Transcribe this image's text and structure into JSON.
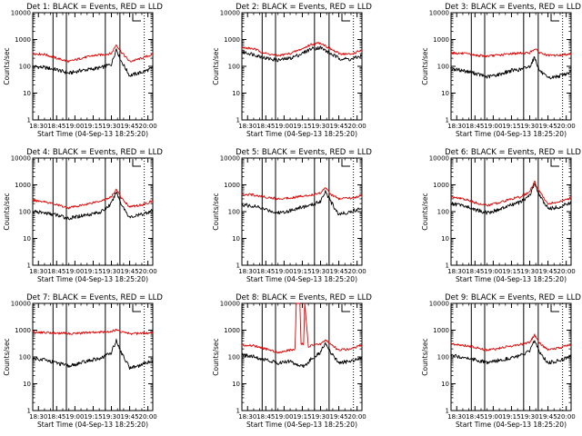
{
  "colors": {
    "events": "#000000",
    "lld": "#e00000",
    "axes": "#000000",
    "background": "#ffffff"
  },
  "chart_data": [
    {
      "type": "line",
      "title": "Det 1: BLACK = Events, RED = LLD",
      "xlabel": "Start Time (04-Sep-13 18:25:20)",
      "ylabel": "Counts/sec",
      "y_scale": "log",
      "ylim": [
        1,
        10000
      ],
      "y_ticks": [
        "1",
        "10",
        "100",
        "1000",
        "10000"
      ],
      "xlim": [
        "18:25:20",
        "20:04:00"
      ],
      "x_ticks": [
        "18:30",
        "18:45",
        "19:00",
        "19:15",
        "19:30",
        "19:45",
        "20:00"
      ],
      "solid_vlines": [
        "18:42",
        "18:53",
        "19:25",
        "19:37"
      ],
      "dotted_vlines": [
        "19:57"
      ],
      "series": [
        {
          "name": "Events",
          "color": "#000000",
          "x": [
            "18:25",
            "18:35",
            "18:45",
            "18:55",
            "19:05",
            "19:15",
            "19:22",
            "19:30",
            "19:34",
            "19:38",
            "19:45",
            "19:55",
            "20:04"
          ],
          "y": [
            100,
            90,
            75,
            55,
            70,
            80,
            90,
            120,
            450,
            160,
            45,
            60,
            85
          ]
        },
        {
          "name": "LLD",
          "color": "#e00000",
          "x": [
            "18:25",
            "18:35",
            "18:45",
            "18:55",
            "19:05",
            "19:15",
            "19:22",
            "19:30",
            "19:34",
            "19:38",
            "19:45",
            "19:55",
            "20:04"
          ],
          "y": [
            300,
            280,
            200,
            150,
            200,
            250,
            270,
            300,
            650,
            350,
            150,
            200,
            280
          ]
        }
      ]
    },
    {
      "type": "line",
      "title": "Det 2: BLACK = Events, RED = LLD",
      "xlabel": "Start Time (04-Sep-13 18:25:20)",
      "ylabel": "Counts/sec",
      "y_scale": "log",
      "ylim": [
        1,
        10000
      ],
      "y_ticks": [
        "1",
        "10",
        "100",
        "1000",
        "10000"
      ],
      "xlim": [
        "18:25:20",
        "20:04:00"
      ],
      "x_ticks": [
        "18:30",
        "18:45",
        "19:00",
        "19:15",
        "19:30",
        "19:45",
        "20:00"
      ],
      "solid_vlines": [
        "18:42",
        "18:53",
        "19:25",
        "19:37"
      ],
      "dotted_vlines": [
        "19:57"
      ],
      "series": [
        {
          "name": "Events",
          "color": "#000000",
          "x": [
            "18:25",
            "18:35",
            "18:45",
            "18:55",
            "19:05",
            "19:15",
            "19:22",
            "19:30",
            "19:38",
            "19:45",
            "19:55",
            "20:04"
          ],
          "y": [
            350,
            280,
            200,
            170,
            200,
            300,
            450,
            500,
            300,
            200,
            180,
            250
          ]
        },
        {
          "name": "LLD",
          "color": "#e00000",
          "x": [
            "18:25",
            "18:35",
            "18:45",
            "18:55",
            "19:05",
            "19:15",
            "19:22",
            "19:30",
            "19:38",
            "19:45",
            "19:55",
            "20:04"
          ],
          "y": [
            500,
            450,
            300,
            250,
            300,
            450,
            650,
            750,
            450,
            300,
            280,
            400
          ]
        }
      ]
    },
    {
      "type": "line",
      "title": "Det 3: BLACK = Events, RED = LLD",
      "xlabel": "Start Time (04-Sep-13 18:25:20)",
      "ylabel": "Counts/sec",
      "y_scale": "log",
      "ylim": [
        1,
        10000
      ],
      "y_ticks": [
        "1",
        "10",
        "100",
        "1000",
        "10000"
      ],
      "xlim": [
        "18:25:20",
        "20:04:00"
      ],
      "x_ticks": [
        "18:30",
        "18:45",
        "19:00",
        "19:15",
        "19:30",
        "19:45",
        "20:00"
      ],
      "solid_vlines": [
        "18:42",
        "18:53",
        "19:25",
        "19:37"
      ],
      "dotted_vlines": [
        "19:57"
      ],
      "series": [
        {
          "name": "Events",
          "color": "#000000",
          "x": [
            "18:25",
            "18:35",
            "18:45",
            "18:55",
            "19:05",
            "19:15",
            "19:22",
            "19:30",
            "19:34",
            "19:38",
            "19:45",
            "19:55",
            "20:04"
          ],
          "y": [
            80,
            70,
            55,
            40,
            50,
            70,
            75,
            100,
            220,
            70,
            35,
            45,
            60
          ]
        },
        {
          "name": "LLD",
          "color": "#e00000",
          "x": [
            "18:25",
            "18:35",
            "18:45",
            "18:55",
            "19:05",
            "19:15",
            "19:22",
            "19:30",
            "19:34",
            "19:38",
            "19:45",
            "19:55",
            "20:04"
          ],
          "y": [
            320,
            300,
            260,
            240,
            260,
            300,
            310,
            320,
            450,
            330,
            250,
            260,
            300
          ]
        }
      ]
    },
    {
      "type": "line",
      "title": "Det 4: BLACK = Events, RED = LLD",
      "xlabel": "Start Time (04-Sep-13 18:25:20)",
      "ylabel": "Counts/sec",
      "y_scale": "log",
      "ylim": [
        1,
        10000
      ],
      "y_ticks": [
        "1",
        "10",
        "100",
        "1000",
        "10000"
      ],
      "xlim": [
        "18:25:20",
        "20:04:00"
      ],
      "x_ticks": [
        "18:30",
        "18:45",
        "19:00",
        "19:15",
        "19:30",
        "19:45",
        "20:00"
      ],
      "solid_vlines": [
        "18:42",
        "18:53",
        "19:25",
        "19:37"
      ],
      "dotted_vlines": [
        "19:57"
      ],
      "series": [
        {
          "name": "Events",
          "color": "#000000",
          "x": [
            "18:25",
            "18:35",
            "18:45",
            "18:55",
            "19:05",
            "19:15",
            "19:22",
            "19:30",
            "19:34",
            "19:38",
            "19:45",
            "19:55",
            "20:04"
          ],
          "y": [
            100,
            90,
            75,
            55,
            70,
            85,
            100,
            200,
            550,
            200,
            60,
            80,
            110
          ]
        },
        {
          "name": "LLD",
          "color": "#e00000",
          "x": [
            "18:25",
            "18:35",
            "18:45",
            "18:55",
            "19:05",
            "19:15",
            "19:22",
            "19:30",
            "19:34",
            "19:38",
            "19:45",
            "19:55",
            "20:04"
          ],
          "y": [
            260,
            240,
            180,
            140,
            170,
            220,
            260,
            350,
            700,
            330,
            150,
            180,
            250
          ]
        }
      ]
    },
    {
      "type": "line",
      "title": "Det 5: BLACK = Events, RED = LLD",
      "xlabel": "Start Time (04-Sep-13 18:25:20)",
      "ylabel": "Counts/sec",
      "y_scale": "log",
      "ylim": [
        1,
        10000
      ],
      "y_ticks": [
        "1",
        "10",
        "100",
        "1000",
        "10000"
      ],
      "xlim": [
        "18:25:20",
        "20:04:00"
      ],
      "x_ticks": [
        "18:30",
        "18:45",
        "19:00",
        "19:15",
        "19:30",
        "19:45",
        "20:00"
      ],
      "solid_vlines": [
        "18:42",
        "18:53",
        "19:25",
        "19:37"
      ],
      "dotted_vlines": [
        "19:57"
      ],
      "series": [
        {
          "name": "Events",
          "color": "#000000",
          "x": [
            "18:25",
            "18:35",
            "18:45",
            "18:55",
            "19:05",
            "19:15",
            "19:22",
            "19:30",
            "19:34",
            "19:38",
            "19:45",
            "19:55",
            "20:04"
          ],
          "y": [
            180,
            160,
            120,
            90,
            110,
            150,
            170,
            250,
            600,
            250,
            80,
            100,
            140
          ]
        },
        {
          "name": "LLD",
          "color": "#e00000",
          "x": [
            "18:25",
            "18:35",
            "18:45",
            "18:55",
            "19:05",
            "19:15",
            "19:22",
            "19:30",
            "19:34",
            "19:38",
            "19:45",
            "19:55",
            "20:04"
          ],
          "y": [
            450,
            420,
            350,
            300,
            330,
            380,
            420,
            500,
            850,
            450,
            300,
            320,
            400
          ]
        }
      ]
    },
    {
      "type": "line",
      "title": "Det 6: BLACK = Events, RED = LLD",
      "xlabel": "Start Time (04-Sep-13 18:25:20)",
      "ylabel": "Counts/sec",
      "y_scale": "log",
      "ylim": [
        1,
        10000
      ],
      "y_ticks": [
        "1",
        "10",
        "100",
        "1000",
        "10000"
      ],
      "xlim": [
        "18:25:20",
        "20:04:00"
      ],
      "x_ticks": [
        "18:30",
        "18:45",
        "19:00",
        "19:15",
        "19:30",
        "19:45",
        "20:00"
      ],
      "solid_vlines": [
        "18:42",
        "18:53",
        "19:25",
        "19:37"
      ],
      "dotted_vlines": [
        "19:57"
      ],
      "series": [
        {
          "name": "Events",
          "color": "#000000",
          "x": [
            "18:25",
            "18:35",
            "18:45",
            "18:55",
            "19:05",
            "19:15",
            "19:22",
            "19:30",
            "19:34",
            "19:38",
            "19:45",
            "19:55",
            "20:04"
          ],
          "y": [
            200,
            170,
            120,
            90,
            120,
            180,
            220,
            400,
            1100,
            400,
            130,
            150,
            220
          ]
        },
        {
          "name": "LLD",
          "color": "#e00000",
          "x": [
            "18:25",
            "18:35",
            "18:45",
            "18:55",
            "19:05",
            "19:15",
            "19:22",
            "19:30",
            "19:34",
            "19:38",
            "19:45",
            "19:55",
            "20:04"
          ],
          "y": [
            350,
            300,
            220,
            170,
            220,
            300,
            350,
            550,
            1300,
            550,
            200,
            230,
            330
          ]
        }
      ]
    },
    {
      "type": "line",
      "title": "Det 7: BLACK = Events, RED = LLD",
      "xlabel": "Start Time (04-Sep-13 18:25:20)",
      "ylabel": "Counts/sec",
      "y_scale": "log",
      "ylim": [
        1,
        10000
      ],
      "y_ticks": [
        "1",
        "10",
        "100",
        "1000",
        "10000"
      ],
      "xlim": [
        "18:25:20",
        "20:04:00"
      ],
      "x_ticks": [
        "18:30",
        "18:45",
        "19:00",
        "19:15",
        "19:30",
        "19:45",
        "20:00"
      ],
      "solid_vlines": [
        "18:42",
        "18:53",
        "19:25",
        "19:37"
      ],
      "dotted_vlines": [
        "19:57"
      ],
      "series": [
        {
          "name": "Events",
          "color": "#000000",
          "x": [
            "18:25",
            "18:35",
            "18:45",
            "18:55",
            "19:05",
            "19:15",
            "19:22",
            "19:30",
            "19:34",
            "19:38",
            "19:45",
            "19:55",
            "20:04"
          ],
          "y": [
            90,
            80,
            60,
            45,
            60,
            80,
            90,
            150,
            420,
            150,
            40,
            50,
            75
          ]
        },
        {
          "name": "LLD",
          "color": "#e00000",
          "x": [
            "18:25",
            "18:35",
            "18:45",
            "18:55",
            "19:05",
            "19:15",
            "19:22",
            "19:30",
            "19:34",
            "19:38",
            "19:45",
            "19:55",
            "20:04"
          ],
          "y": [
            850,
            820,
            780,
            750,
            780,
            820,
            850,
            900,
            1050,
            880,
            750,
            760,
            800
          ]
        }
      ]
    },
    {
      "type": "line",
      "title": "Det 8: BLACK = Events, RED = LLD",
      "xlabel": "Start Time (04-Sep-13 18:25:20)",
      "ylabel": "Counts/sec",
      "y_scale": "log",
      "ylim": [
        1,
        10000
      ],
      "y_ticks": [
        "1",
        "10",
        "100",
        "1000",
        "10000"
      ],
      "xlim": [
        "18:25:20",
        "20:04:00"
      ],
      "x_ticks": [
        "18:30",
        "18:45",
        "19:00",
        "19:15",
        "19:30",
        "19:45",
        "20:00"
      ],
      "solid_vlines": [
        "18:42",
        "18:53",
        "19:25",
        "19:37"
      ],
      "dotted_vlines": [
        "19:57"
      ],
      "series": [
        {
          "name": "Events",
          "color": "#000000",
          "x": [
            "18:25",
            "18:35",
            "18:45",
            "18:55",
            "19:05",
            "19:11",
            "19:17",
            "19:22",
            "19:30",
            "19:34",
            "19:38",
            "19:45",
            "19:55",
            "20:04"
          ],
          "y": [
            120,
            100,
            80,
            60,
            70,
            50,
            45,
            80,
            150,
            350,
            150,
            60,
            70,
            100
          ]
        },
        {
          "name": "LLD",
          "color": "#e00000",
          "x": [
            "18:25",
            "18:35",
            "18:45",
            "18:55",
            "19:05",
            "19:09",
            "19:10",
            "19:13",
            "19:14",
            "19:16",
            "19:17",
            "19:20",
            "19:25",
            "19:30",
            "19:34",
            "19:38",
            "19:45",
            "19:55",
            "20:04"
          ],
          "y": [
            280,
            260,
            200,
            150,
            180,
            200,
            10000,
            10000,
            300,
            300,
            10000,
            250,
            280,
            300,
            450,
            300,
            180,
            200,
            280
          ]
        }
      ]
    },
    {
      "type": "line",
      "title": "Det 9: BLACK = Events, RED = LLD",
      "xlabel": "Start Time (04-Sep-13 18:25:20)",
      "ylabel": "Counts/sec",
      "y_scale": "log",
      "ylim": [
        1,
        10000
      ],
      "y_ticks": [
        "1",
        "10",
        "100",
        "1000",
        "10000"
      ],
      "xlim": [
        "18:25:20",
        "20:04:00"
      ],
      "x_ticks": [
        "18:30",
        "18:45",
        "19:00",
        "19:15",
        "19:30",
        "19:45",
        "20:00"
      ],
      "solid_vlines": [
        "18:42",
        "18:53",
        "19:25",
        "19:37"
      ],
      "dotted_vlines": [
        "19:57"
      ],
      "series": [
        {
          "name": "Events",
          "color": "#000000",
          "x": [
            "18:25",
            "18:35",
            "18:45",
            "18:55",
            "19:05",
            "19:15",
            "19:22",
            "19:30",
            "19:34",
            "19:38",
            "19:45",
            "19:55",
            "20:04"
          ],
          "y": [
            110,
            100,
            80,
            60,
            75,
            95,
            110,
            160,
            420,
            160,
            60,
            75,
            110
          ]
        },
        {
          "name": "LLD",
          "color": "#e00000",
          "x": [
            "18:25",
            "18:35",
            "18:45",
            "18:55",
            "19:05",
            "19:15",
            "19:22",
            "19:30",
            "19:34",
            "19:38",
            "19:45",
            "19:55",
            "20:04"
          ],
          "y": [
            300,
            280,
            230,
            180,
            210,
            260,
            290,
            350,
            650,
            330,
            180,
            220,
            300
          ]
        }
      ]
    }
  ]
}
